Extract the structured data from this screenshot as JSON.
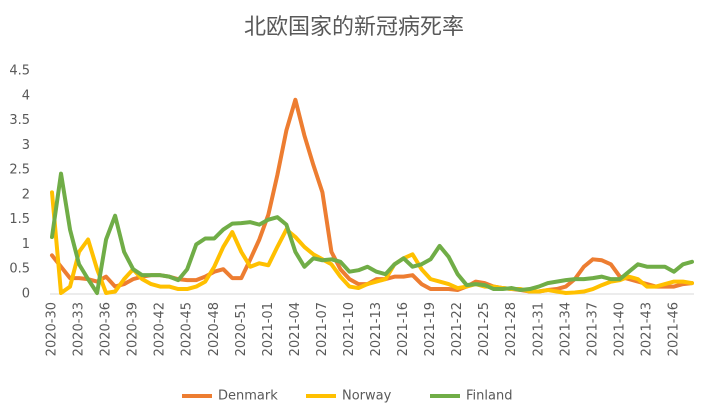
{
  "chart_data": {
    "type": "line",
    "title": "北欧国家的新冠病死率",
    "categories": [
      "2020-30",
      null,
      null,
      "2020-33",
      null,
      null,
      "2020-36",
      null,
      null,
      "2020-39",
      null,
      null,
      "2020-42",
      null,
      null,
      "2020-45",
      null,
      null,
      "2020-48",
      null,
      null,
      "2020-51",
      null,
      null,
      "2021-01",
      null,
      null,
      "2021-04",
      null,
      null,
      "2021-07",
      null,
      null,
      "2021-10",
      null,
      null,
      "2021-13",
      null,
      null,
      "2021-16",
      null,
      null,
      "2021-19",
      null,
      null,
      "2021-22",
      null,
      null,
      "2021-25",
      null,
      null,
      "2021-28",
      null,
      null,
      "2021-31",
      null,
      null,
      "2021-34",
      null,
      null,
      "2021-37",
      null,
      null,
      "2021-40",
      null,
      null,
      "2021-43",
      null,
      null,
      "2021-46",
      null,
      null
    ],
    "series": [
      {
        "name": "Denmark",
        "color": "#ed7d31",
        "values": [
          0.78,
          0.55,
          0.32,
          0.32,
          0.3,
          0.25,
          0.35,
          0.15,
          0.2,
          0.3,
          0.35,
          0.38,
          0.38,
          0.35,
          0.3,
          0.28,
          0.28,
          0.35,
          0.45,
          0.5,
          0.32,
          0.32,
          0.7,
          1.1,
          1.6,
          2.4,
          3.3,
          3.92,
          3.2,
          2.6,
          2.05,
          0.85,
          0.5,
          0.3,
          0.2,
          0.2,
          0.3,
          0.3,
          0.35,
          0.35,
          0.38,
          0.2,
          0.1,
          0.1,
          0.1,
          0.08,
          0.15,
          0.25,
          0.22,
          0.15,
          0.12,
          0.1,
          0.08,
          0.05,
          0.05,
          0.08,
          0.1,
          0.15,
          0.3,
          0.55,
          0.7,
          0.68,
          0.6,
          0.35,
          0.3,
          0.25,
          0.2,
          0.15,
          0.15,
          0.15,
          0.2,
          0.22
        ]
      },
      {
        "name": "Norway",
        "color": "#ffc000",
        "values": [
          2.05,
          0.02,
          0.15,
          0.85,
          1.1,
          0.5,
          0.02,
          0.05,
          0.3,
          0.5,
          0.3,
          0.2,
          0.15,
          0.15,
          0.1,
          0.1,
          0.15,
          0.25,
          0.55,
          0.95,
          1.25,
          0.85,
          0.55,
          0.62,
          0.58,
          0.95,
          1.3,
          1.15,
          0.95,
          0.8,
          0.7,
          0.6,
          0.35,
          0.15,
          0.12,
          0.2,
          0.25,
          0.3,
          0.6,
          0.72,
          0.8,
          0.5,
          0.3,
          0.25,
          0.2,
          0.12,
          0.15,
          0.2,
          0.15,
          0.15,
          0.12,
          0.1,
          0.1,
          0.05,
          0.05,
          0.08,
          0.05,
          0.02,
          0.03,
          0.05,
          0.1,
          0.18,
          0.25,
          0.28,
          0.35,
          0.3,
          0.15,
          0.15,
          0.2,
          0.25,
          0.25,
          0.22
        ]
      },
      {
        "name": "Finland",
        "color": "#70ad47",
        "values": [
          1.15,
          2.43,
          1.3,
          0.6,
          0.3,
          0.02,
          1.1,
          1.58,
          0.85,
          0.5,
          0.38,
          0.38,
          0.38,
          0.35,
          0.28,
          0.5,
          1.0,
          1.12,
          1.12,
          1.3,
          1.42,
          1.43,
          1.45,
          1.4,
          1.5,
          1.55,
          1.4,
          0.85,
          0.55,
          0.72,
          0.68,
          0.7,
          0.65,
          0.45,
          0.48,
          0.55,
          0.45,
          0.4,
          0.6,
          0.72,
          0.55,
          0.6,
          0.7,
          0.97,
          0.75,
          0.4,
          0.18,
          0.2,
          0.18,
          0.1,
          0.1,
          0.12,
          0.08,
          0.1,
          0.15,
          0.22,
          0.25,
          0.28,
          0.3,
          0.3,
          0.32,
          0.35,
          0.3,
          0.3,
          0.45,
          0.6,
          0.55,
          0.55,
          0.55,
          0.45,
          0.6,
          0.65
        ]
      }
    ],
    "ylim": [
      0,
      4.5
    ],
    "yticks": [
      0,
      0.5,
      1,
      1.5,
      2,
      2.5,
      3,
      3.5,
      4,
      4.5
    ],
    "grid": false,
    "legend": "bottom"
  }
}
